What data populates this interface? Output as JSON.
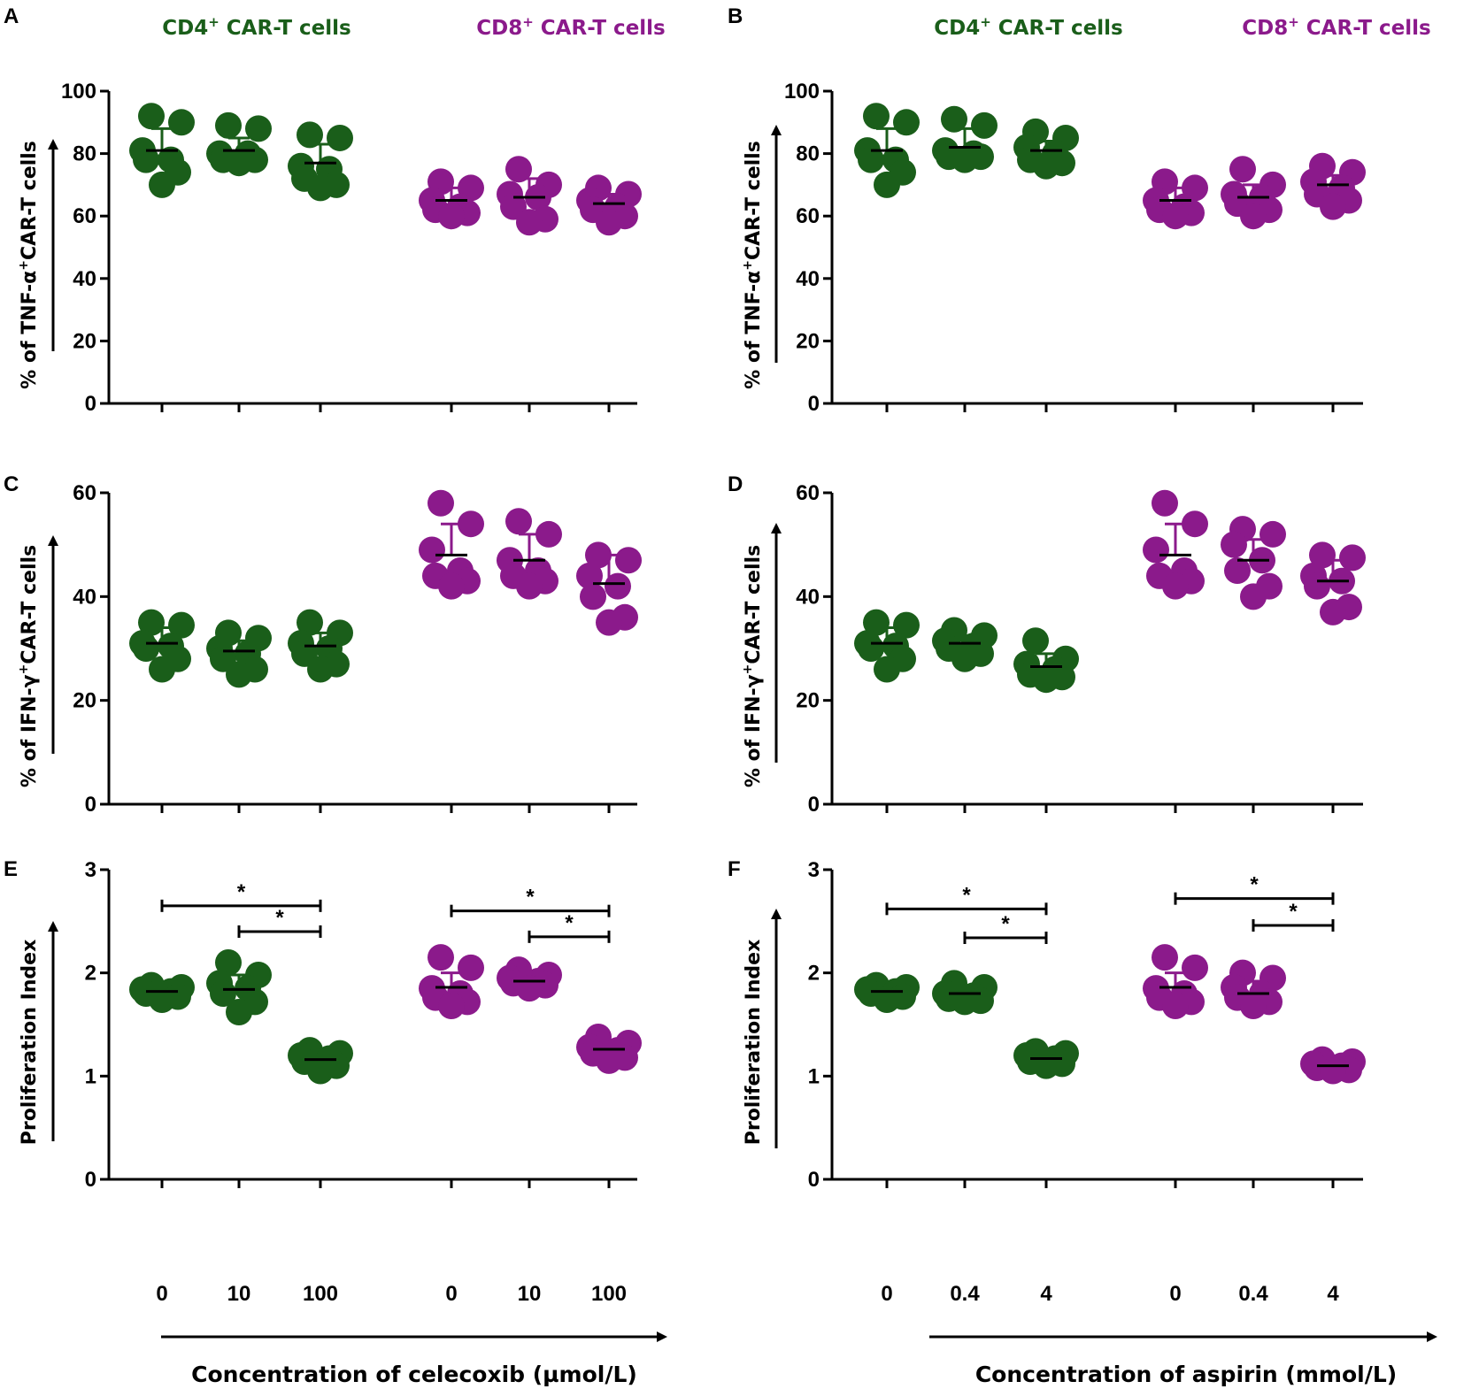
{
  "colors": {
    "cd4": "#1a5e1a",
    "cd8": "#8b1a8b",
    "axis": "#000000"
  },
  "group_titles": {
    "cd4_prefix": "CD4",
    "cd8_prefix": "CD8",
    "sup": "+",
    "suffix": " CAR-T cells"
  },
  "x_axis": {
    "left_title": "Concentration of celecoxib (µmol/L)",
    "right_title": "Concentration of aspirin (mmol/L)",
    "left_categories": [
      "0",
      "10",
      "100",
      "0",
      "10",
      "100"
    ],
    "right_categories": [
      "0",
      "0.4",
      "4",
      "0",
      "0.4",
      "4"
    ]
  },
  "chart_data": [
    {
      "panel": "A",
      "type": "scatter",
      "ylabel": {
        "prefix": "% of TNF-α",
        "sup": "+",
        "suffix": "CAR-T cells"
      },
      "ylim": [
        0,
        100
      ],
      "yticks": [
        0,
        20,
        40,
        60,
        80,
        100
      ],
      "groups": [
        {
          "cell": "CD4",
          "conc": "0",
          "values": [
            92,
            90,
            81,
            78,
            78,
            74,
            70
          ],
          "mean": 81,
          "sd_hi": 88
        },
        {
          "cell": "CD4",
          "conc": "10",
          "values": [
            89,
            88,
            80,
            80,
            78,
            78,
            77
          ],
          "mean": 81,
          "sd_hi": 85
        },
        {
          "cell": "CD4",
          "conc": "100",
          "values": [
            86,
            85,
            76,
            75,
            72,
            70,
            69
          ],
          "mean": 77,
          "sd_hi": 83
        },
        {
          "cell": "CD8",
          "conc": "0",
          "values": [
            71,
            69,
            65,
            63,
            62,
            61,
            60
          ],
          "mean": 65,
          "sd_hi": 69
        },
        {
          "cell": "CD8",
          "conc": "10",
          "values": [
            75,
            70,
            67,
            66,
            63,
            59,
            58
          ],
          "mean": 66,
          "sd_hi": 72
        },
        {
          "cell": "CD8",
          "conc": "100",
          "values": [
            69,
            67,
            65,
            63,
            62,
            60,
            58
          ],
          "mean": 64,
          "sd_hi": 67
        }
      ]
    },
    {
      "panel": "B",
      "type": "scatter",
      "ylabel": {
        "prefix": "% of TNF-α",
        "sup": "+",
        "suffix": "CAR-T cells"
      },
      "ylim": [
        0,
        100
      ],
      "yticks": [
        0,
        20,
        40,
        60,
        80,
        100
      ],
      "groups": [
        {
          "cell": "CD4",
          "conc": "0",
          "values": [
            92,
            90,
            81,
            78,
            78,
            74,
            70
          ],
          "mean": 81,
          "sd_hi": 88
        },
        {
          "cell": "CD4",
          "conc": "0.4",
          "values": [
            91,
            89,
            81,
            80,
            79,
            79,
            78
          ],
          "mean": 82,
          "sd_hi": 88
        },
        {
          "cell": "CD4",
          "conc": "4",
          "values": [
            87,
            85,
            82,
            80,
            78,
            77,
            76
          ],
          "mean": 81,
          "sd_hi": 84
        },
        {
          "cell": "CD8",
          "conc": "0",
          "values": [
            71,
            69,
            65,
            63,
            62,
            61,
            60
          ],
          "mean": 65,
          "sd_hi": 69
        },
        {
          "cell": "CD8",
          "conc": "0.4",
          "values": [
            75,
            70,
            67,
            66,
            64,
            62,
            60
          ],
          "mean": 66,
          "sd_hi": 70
        },
        {
          "cell": "CD8",
          "conc": "4",
          "values": [
            76,
            74,
            71,
            69,
            67,
            65,
            63
          ],
          "mean": 70,
          "sd_hi": 73
        }
      ]
    },
    {
      "panel": "C",
      "type": "scatter",
      "ylabel": {
        "prefix": "% of IFN-γ",
        "sup": "+",
        "suffix": "CAR-T cells"
      },
      "ylim": [
        0,
        60
      ],
      "yticks": [
        0,
        20,
        40,
        60
      ],
      "groups": [
        {
          "cell": "CD4",
          "conc": "0",
          "values": [
            35,
            34.5,
            31,
            30.5,
            30,
            28,
            26
          ],
          "mean": 31,
          "sd_hi": 34
        },
        {
          "cell": "CD4",
          "conc": "10",
          "values": [
            33,
            32,
            30,
            29,
            28,
            26,
            25
          ],
          "mean": 29.5,
          "sd_hi": 31.5
        },
        {
          "cell": "CD4",
          "conc": "100",
          "values": [
            35,
            33,
            31,
            30,
            29,
            27,
            26
          ],
          "mean": 30.5,
          "sd_hi": 33
        },
        {
          "cell": "CD8",
          "conc": "0",
          "values": [
            58,
            54,
            49,
            45,
            44,
            43,
            42
          ],
          "mean": 48,
          "sd_hi": 54
        },
        {
          "cell": "CD8",
          "conc": "10",
          "values": [
            54.5,
            52,
            47,
            45,
            44,
            43,
            42
          ],
          "mean": 47,
          "sd_hi": 52
        },
        {
          "cell": "CD8",
          "conc": "100",
          "values": [
            48,
            47,
            44,
            42,
            40,
            36,
            35
          ],
          "mean": 42.5,
          "sd_hi": 48
        }
      ]
    },
    {
      "panel": "D",
      "type": "scatter",
      "ylabel": {
        "prefix": "% of IFN-γ",
        "sup": "+",
        "suffix": "CAR-T cells"
      },
      "ylim": [
        0,
        60
      ],
      "yticks": [
        0,
        20,
        40,
        60
      ],
      "groups": [
        {
          "cell": "CD4",
          "conc": "0",
          "values": [
            35,
            34.5,
            31,
            30.5,
            30,
            28,
            26
          ],
          "mean": 31,
          "sd_hi": 34
        },
        {
          "cell": "CD4",
          "conc": "0.4",
          "values": [
            33.5,
            32.5,
            31.5,
            30.5,
            30,
            29,
            28
          ],
          "mean": 31,
          "sd_hi": 32.5
        },
        {
          "cell": "CD4",
          "conc": "4",
          "values": [
            31.5,
            28,
            27,
            26,
            25,
            24.5,
            24
          ],
          "mean": 26.5,
          "sd_hi": 29
        },
        {
          "cell": "CD8",
          "conc": "0",
          "values": [
            58,
            54,
            49,
            45,
            44,
            43,
            42
          ],
          "mean": 48,
          "sd_hi": 54
        },
        {
          "cell": "CD8",
          "conc": "0.4",
          "values": [
            53,
            52,
            50,
            47,
            45,
            42,
            40
          ],
          "mean": 47,
          "sd_hi": 51
        },
        {
          "cell": "CD8",
          "conc": "4",
          "values": [
            48,
            47.5,
            44,
            43,
            42,
            38,
            37
          ],
          "mean": 43,
          "sd_hi": 47
        }
      ]
    },
    {
      "panel": "E",
      "type": "scatter",
      "ylabel": {
        "prefix": "Proliferation Index",
        "sup": "",
        "suffix": ""
      },
      "ylim": [
        0,
        3
      ],
      "yticks": [
        0,
        1,
        2,
        3
      ],
      "groups": [
        {
          "cell": "CD4",
          "conc": "0",
          "values": [
            1.88,
            1.86,
            1.84,
            1.82,
            1.8,
            1.77,
            1.74
          ],
          "mean": 1.82,
          "sd_hi": 1.86
        },
        {
          "cell": "CD4",
          "conc": "10",
          "values": [
            2.1,
            1.98,
            1.9,
            1.85,
            1.8,
            1.72,
            1.62
          ],
          "mean": 1.84,
          "sd_hi": 1.98
        },
        {
          "cell": "CD4",
          "conc": "100",
          "values": [
            1.25,
            1.22,
            1.2,
            1.17,
            1.14,
            1.1,
            1.05
          ],
          "mean": 1.16,
          "sd_hi": 1.21
        },
        {
          "cell": "CD8",
          "conc": "0",
          "values": [
            2.15,
            2.05,
            1.85,
            1.8,
            1.76,
            1.72,
            1.68
          ],
          "mean": 1.86,
          "sd_hi": 2.0
        },
        {
          "cell": "CD8",
          "conc": "10",
          "values": [
            2.03,
            1.98,
            1.95,
            1.92,
            1.9,
            1.88,
            1.85
          ],
          "mean": 1.92,
          "sd_hi": 1.98
        },
        {
          "cell": "CD8",
          "conc": "100",
          "values": [
            1.38,
            1.32,
            1.28,
            1.25,
            1.22,
            1.18,
            1.15
          ],
          "mean": 1.26,
          "sd_hi": 1.3
        }
      ],
      "significance": [
        {
          "from": 0,
          "to": 2,
          "level": 2.65,
          "label": "*"
        },
        {
          "from": 1,
          "to": 2,
          "level": 2.4,
          "label": "*"
        },
        {
          "from": 3,
          "to": 5,
          "level": 2.6,
          "label": "*"
        },
        {
          "from": 4,
          "to": 5,
          "level": 2.35,
          "label": "*"
        }
      ]
    },
    {
      "panel": "F",
      "type": "scatter",
      "ylabel": {
        "prefix": "Proliferation Index",
        "sup": "",
        "suffix": ""
      },
      "ylim": [
        0,
        3
      ],
      "yticks": [
        0,
        1,
        2,
        3
      ],
      "groups": [
        {
          "cell": "CD4",
          "conc": "0",
          "values": [
            1.88,
            1.86,
            1.84,
            1.82,
            1.8,
            1.77,
            1.74
          ],
          "mean": 1.82,
          "sd_hi": 1.86
        },
        {
          "cell": "CD4",
          "conc": "0.4",
          "values": [
            1.9,
            1.86,
            1.8,
            1.78,
            1.75,
            1.73,
            1.72
          ],
          "mean": 1.8,
          "sd_hi": 1.85
        },
        {
          "cell": "CD4",
          "conc": "4",
          "values": [
            1.24,
            1.22,
            1.2,
            1.17,
            1.14,
            1.12,
            1.1
          ],
          "mean": 1.17,
          "sd_hi": 1.2
        },
        {
          "cell": "CD8",
          "conc": "0",
          "values": [
            2.15,
            2.05,
            1.85,
            1.8,
            1.76,
            1.72,
            1.68
          ],
          "mean": 1.86,
          "sd_hi": 2.0
        },
        {
          "cell": "CD8",
          "conc": "0.4",
          "values": [
            2.0,
            1.95,
            1.86,
            1.8,
            1.76,
            1.72,
            1.68
          ],
          "mean": 1.8,
          "sd_hi": 1.92
        },
        {
          "cell": "CD8",
          "conc": "4",
          "values": [
            1.16,
            1.14,
            1.12,
            1.1,
            1.08,
            1.06,
            1.05
          ],
          "mean": 1.1,
          "sd_hi": 1.13
        }
      ],
      "significance": [
        {
          "from": 0,
          "to": 2,
          "level": 2.62,
          "label": "*"
        },
        {
          "from": 1,
          "to": 2,
          "level": 2.34,
          "label": "*"
        },
        {
          "from": 3,
          "to": 5,
          "level": 2.72,
          "label": "*"
        },
        {
          "from": 4,
          "to": 5,
          "level": 2.46,
          "label": "*"
        }
      ]
    }
  ]
}
